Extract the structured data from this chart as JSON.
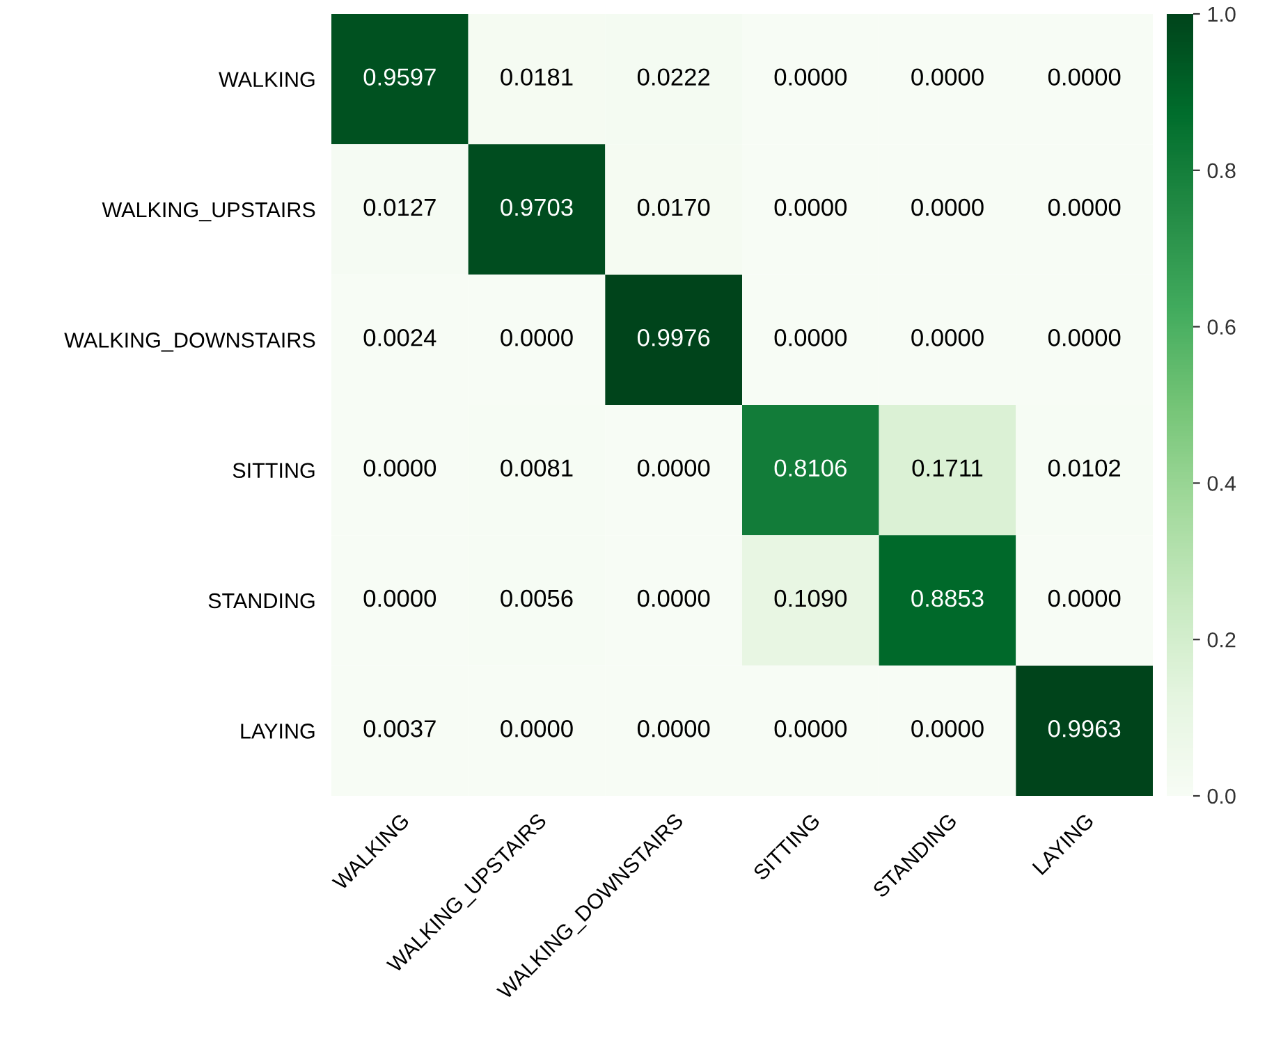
{
  "chart_data": {
    "type": "heatmap",
    "categories": [
      "WALKING",
      "WALKING_UPSTAIRS",
      "WALKING_DOWNSTAIRS",
      "SITTING",
      "STANDING",
      "LAYING"
    ],
    "y_categories": [
      "WALKING",
      "WALKING_UPSTAIRS",
      "WALKING_DOWNSTAIRS",
      "SITTING",
      "STANDING",
      "LAYING"
    ],
    "cells": [
      [
        0.9597,
        0.0181,
        0.0222,
        0.0,
        0.0,
        0.0
      ],
      [
        0.0127,
        0.9703,
        0.017,
        0.0,
        0.0,
        0.0
      ],
      [
        0.0024,
        0.0,
        0.9976,
        0.0,
        0.0,
        0.0
      ],
      [
        0.0,
        0.0081,
        0.0,
        0.8106,
        0.1711,
        0.0102
      ],
      [
        0.0,
        0.0056,
        0.0,
        0.109,
        0.8853,
        0.0
      ],
      [
        0.0037,
        0.0,
        0.0,
        0.0,
        0.0,
        0.9963
      ]
    ],
    "cell_labels": [
      [
        "0.9597",
        "0.0181",
        "0.0222",
        "0.0000",
        "0.0000",
        "0.0000"
      ],
      [
        "0.0127",
        "0.9703",
        "0.0170",
        "0.0000",
        "0.0000",
        "0.0000"
      ],
      [
        "0.0024",
        "0.0000",
        "0.9976",
        "0.0000",
        "0.0000",
        "0.0000"
      ],
      [
        "0.0000",
        "0.0081",
        "0.0000",
        "0.8106",
        "0.1711",
        "0.0102"
      ],
      [
        "0.0000",
        "0.0056",
        "0.0000",
        "0.1090",
        "0.8853",
        "0.0000"
      ],
      [
        "0.0037",
        "0.0000",
        "0.0000",
        "0.0000",
        "0.0000",
        "0.9963"
      ]
    ],
    "colors": [
      "#f7fcf5",
      "#e5f5e0",
      "#c7e9c0",
      "#a1d99b",
      "#74c476",
      "#41ab5d",
      "#238b45",
      "#006d2c",
      "#00441b"
    ],
    "clim": [
      0,
      1
    ],
    "cticks": [
      {
        "value": 0,
        "label": "0.0"
      },
      {
        "value": 0.2,
        "label": "0.2"
      },
      {
        "value": 0.4,
        "label": "0.4"
      },
      {
        "value": 0.6,
        "label": "0.6"
      },
      {
        "value": 0.8,
        "label": "0.8"
      },
      {
        "value": 1,
        "label": "1.0"
      }
    ]
  }
}
